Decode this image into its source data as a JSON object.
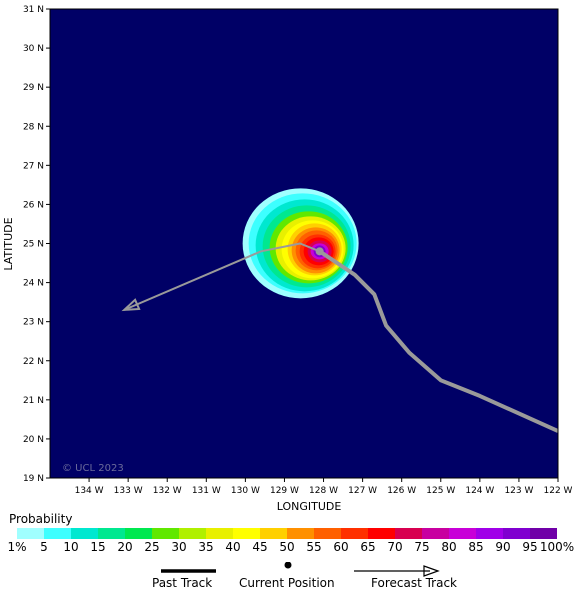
{
  "map": {
    "xlabel": "LONGITUDE",
    "ylabel": "LATITUDE",
    "lon_range": [
      -135.0,
      -122.0
    ],
    "lat_range": [
      19.0,
      31.0
    ],
    "lon_ticks": [
      "134 W",
      "133 W",
      "132 W",
      "131 W",
      "130 W",
      "129 W",
      "128 W",
      "127 W",
      "126 W",
      "125 W",
      "124 W",
      "123 W",
      "122 W"
    ],
    "lat_ticks": [
      "31 N",
      "30 N",
      "29 N",
      "28 N",
      "27 N",
      "26 N",
      "25 N",
      "24 N",
      "23 N",
      "22 N",
      "21 N",
      "20 N",
      "19 N"
    ],
    "background_color": "#000066",
    "copyright": "© UCL 2023",
    "probability_field": {
      "center_lon": -128.1,
      "center_lat": 24.8,
      "peak_percent": 95
    },
    "current_position": {
      "lon": -128.1,
      "lat": 24.8
    },
    "past_track": [
      {
        "lon": -128.1,
        "lat": 24.8
      },
      {
        "lon": -127.2,
        "lat": 24.2
      },
      {
        "lon": -126.7,
        "lat": 23.7
      },
      {
        "lon": -126.4,
        "lat": 22.9
      },
      {
        "lon": -125.8,
        "lat": 22.2
      },
      {
        "lon": -125.0,
        "lat": 21.5
      },
      {
        "lon": -124.0,
        "lat": 21.1
      },
      {
        "lon": -122.0,
        "lat": 20.2
      }
    ],
    "forecast_track": [
      {
        "lon": -128.1,
        "lat": 24.8
      },
      {
        "lon": -128.6,
        "lat": 25.0
      },
      {
        "lon": -129.6,
        "lat": 24.8
      },
      {
        "lon": -133.1,
        "lat": 23.3
      }
    ]
  },
  "legend": {
    "title": "Probability",
    "labels": [
      "1%",
      "5",
      "10",
      "15",
      "20",
      "25",
      "30",
      "35",
      "40",
      "45",
      "50",
      "55",
      "60",
      "65",
      "70",
      "75",
      "80",
      "85",
      "90",
      "95",
      "100%"
    ],
    "colors": [
      "#a0ffff",
      "#3dffff",
      "#00e8d0",
      "#00e890",
      "#00e850",
      "#60e800",
      "#b0f000",
      "#e8f000",
      "#ffff00",
      "#ffd000",
      "#ff9000",
      "#ff6000",
      "#ff3000",
      "#ff0000",
      "#d80050",
      "#c800a0",
      "#c800d8",
      "#a000e8",
      "#8000d0",
      "#7000a8",
      "#600060"
    ]
  },
  "key": {
    "past_track_label": "Past Track",
    "current_position_label": "Current Position",
    "forecast_track_label": "Forecast Track"
  }
}
